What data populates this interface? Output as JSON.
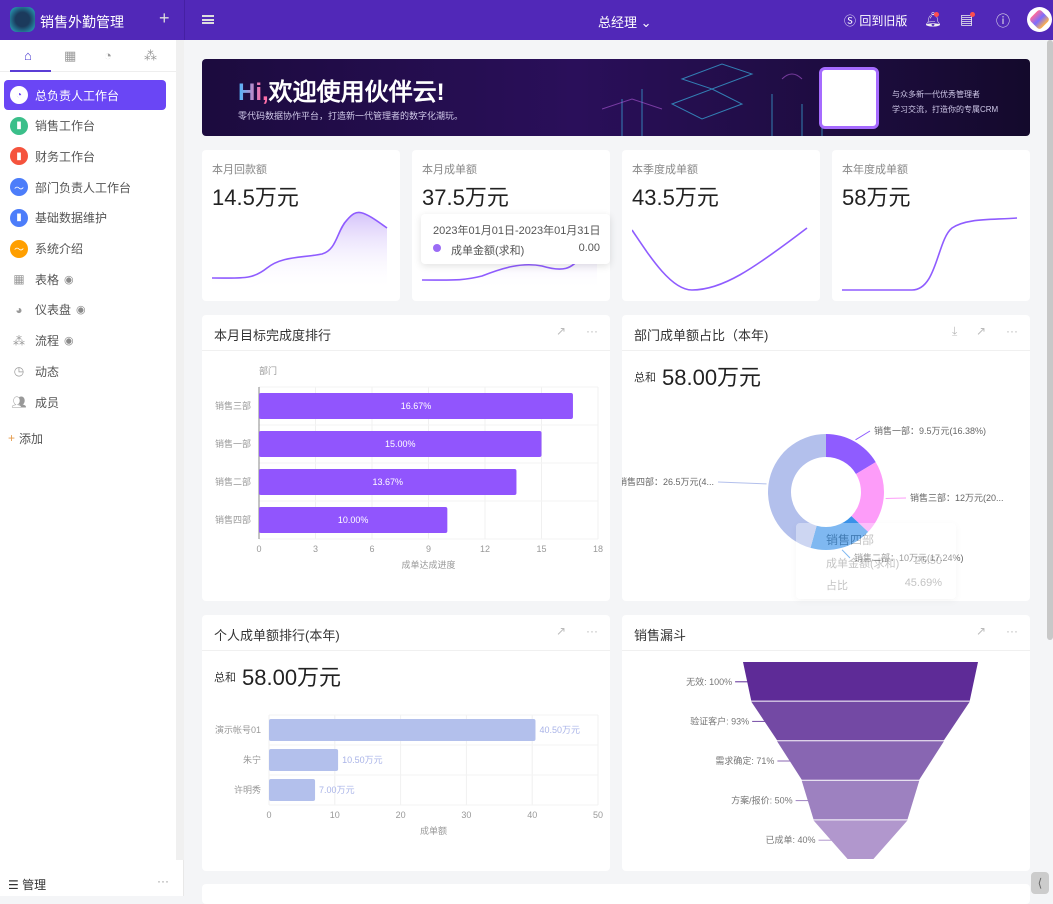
{
  "app": {
    "name": "销售外勤管理",
    "role": "总经理",
    "old_version": "回到旧版"
  },
  "colors": {
    "brand": "#5128b8",
    "active": "#6a46f5",
    "bar": "#9155fd",
    "person_bar": "#b3c0ec"
  },
  "sidebar": {
    "tabs": [
      "home-icon",
      "table-icon",
      "dashboard-icon",
      "flow-icon"
    ],
    "items": [
      {
        "label": "总负责人工作台",
        "icon": "pie-icon",
        "color": "#6a46f5",
        "active": true
      },
      {
        "label": "销售工作台",
        "icon": "bar-chart-icon",
        "color": "#3bbf8a"
      },
      {
        "label": "财务工作台",
        "icon": "bar-chart-icon",
        "color": "#f5533d"
      },
      {
        "label": "部门负责人工作台",
        "icon": "trend-icon",
        "color": "#4c7dfa"
      },
      {
        "label": "基础数据维护",
        "icon": "bar-chart-icon",
        "color": "#4c7dfa"
      },
      {
        "label": "系统介绍",
        "icon": "trend-icon",
        "color": "#ff9f00"
      },
      {
        "label": "表格",
        "icon": "grid-icon",
        "hidden": true
      },
      {
        "label": "仪表盘",
        "icon": "dashboard-icon",
        "hidden": true
      },
      {
        "label": "流程",
        "icon": "flow-icon",
        "hidden": true
      },
      {
        "label": "动态",
        "icon": "clock-icon"
      },
      {
        "label": "成员",
        "icon": "members-icon"
      }
    ],
    "add": "添加",
    "manage": "管理"
  },
  "banner": {
    "hi": "Hi",
    "title": "欢迎使用伙伴云!",
    "subtitle": "零代码数据协作平台，打造新一代管理者的数字化潮玩。",
    "right1": "与众多新一代优秀管理者",
    "right2": "学习交流，打造你的专属CRM"
  },
  "kpis": [
    {
      "label": "本月回款额",
      "value": "14.5万元"
    },
    {
      "label": "本月成单额",
      "value": "37.5万元"
    },
    {
      "label": "本季度成单额",
      "value": "43.5万元"
    },
    {
      "label": "本年度成单额",
      "value": "58万元"
    }
  ],
  "kpi_tooltip": {
    "date": "2023年01月01日-2023年01月31日",
    "series": "成单金额(求和)",
    "value": "0.00"
  },
  "panels": {
    "target": {
      "title": "本月目标完成度排行"
    },
    "dept": {
      "title": "部门成单额占比（本年)",
      "sum_label": "总和",
      "sum_value": "58.00万元"
    },
    "person": {
      "title": "个人成单额排行(本年)",
      "sum_label": "总和",
      "sum_value": "58.00万元"
    },
    "funnel": {
      "title": "销售漏斗"
    }
  },
  "dept_tooltip": {
    "name": "销售四部",
    "row1": "成单金额(求和)",
    "row1_value": "26.50",
    "row2": "占比",
    "row2_value": "45.69%"
  },
  "chart_data": [
    {
      "type": "bar",
      "orientation": "horizontal",
      "title": "本月目标完成度排行",
      "ylabel": "部门",
      "xlabel": "成单达成进度",
      "categories": [
        "销售三部",
        "销售一部",
        "销售二部",
        "销售四部"
      ],
      "values": [
        16.67,
        15.0,
        13.67,
        10.0
      ],
      "labels": [
        "16.67%",
        "15.00%",
        "13.67%",
        "10.00%"
      ],
      "xlim": [
        0,
        18
      ],
      "xticks": [
        0,
        3,
        6,
        9,
        12,
        15,
        18
      ]
    },
    {
      "type": "pie",
      "donut": true,
      "title": "部门成单额占比（本年)",
      "categories": [
        "销售一部",
        "销售三部",
        "销售二部",
        "销售四部"
      ],
      "values": [
        9.5,
        12,
        10,
        26.5
      ],
      "labels": [
        "销售一部：9.5万元(16.38%)",
        "销售三部：12万元(20...",
        "销售二部：10万元(17.24%)",
        "销售四部：26.5万元(4..."
      ],
      "colors": [
        "#8f5cff",
        "#fd9cf9",
        "#3a93ea",
        "#b3c0ec"
      ]
    },
    {
      "type": "bar",
      "orientation": "horizontal",
      "title": "个人成单额排行(本年)",
      "xlabel": "成单额",
      "categories": [
        "演示帐号01",
        "朱宁",
        "许明秀"
      ],
      "values": [
        40.5,
        10.5,
        7.0
      ],
      "labels": [
        "40.50万元",
        "10.50万元",
        "7.00万元"
      ],
      "xlim": [
        0,
        50
      ],
      "xticks": [
        0,
        10,
        20,
        30,
        40,
        50
      ]
    },
    {
      "type": "funnel",
      "title": "销售漏斗",
      "categories": [
        "无效",
        "验证客户",
        "需求确定",
        "方案/报价",
        "已成单"
      ],
      "values": [
        100,
        93,
        71,
        50,
        40
      ],
      "labels": [
        "无效: 100%",
        "验证客户: 93%",
        "需求确定: 71%",
        "方案/报价: 50%",
        "已成单: 40%"
      ],
      "colors": [
        "#5e2b97",
        "#7349a4",
        "#8866b2",
        "#9d81c0",
        "#b197cd"
      ]
    }
  ]
}
